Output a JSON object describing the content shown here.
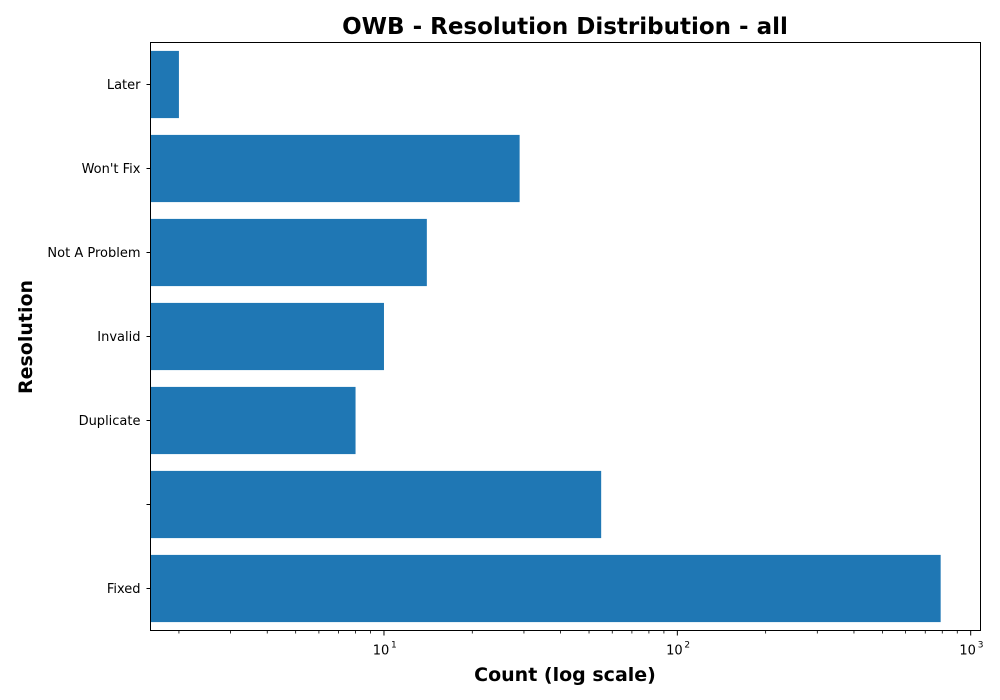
{
  "chart_data": {
    "type": "bar",
    "orientation": "horizontal",
    "title": "OWB - Resolution Distribution - all",
    "xlabel": "Count (log scale)",
    "ylabel": "Resolution",
    "x_scale": "log",
    "xlim": [
      1.6,
      1080
    ],
    "x_ticks": [
      {
        "value": 10,
        "base": "10",
        "exponent": "1"
      },
      {
        "value": 100,
        "base": "10",
        "exponent": "2"
      },
      {
        "value": 1000,
        "base": "10",
        "exponent": "3"
      }
    ],
    "categories": [
      "Fixed",
      "",
      "Duplicate",
      "Invalid",
      "Not A Problem",
      "Won't Fix",
      "Later"
    ],
    "values": [
      790,
      55,
      8,
      10,
      14,
      29,
      2
    ],
    "bar_color": "#1f77b4",
    "grid": false,
    "legend": "none"
  }
}
